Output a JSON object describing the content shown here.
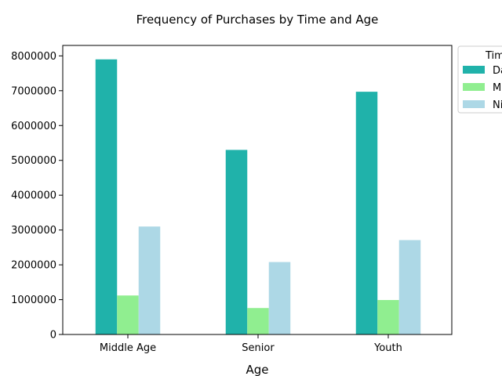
{
  "chart_data": {
    "type": "bar",
    "title": "Frequency of Purchases by Time and Age",
    "xlabel": "Age",
    "ylabel": "",
    "categories": [
      "Middle Age",
      "Senior",
      "Youth"
    ],
    "series": [
      {
        "name": "Da",
        "values": [
          7900000,
          5300000,
          6970000
        ],
        "color": "#20b2aa"
      },
      {
        "name": "M",
        "values": [
          1120000,
          760000,
          990000
        ],
        "color": "#90ee90"
      },
      {
        "name": "Ni",
        "values": [
          3100000,
          2080000,
          2710000
        ],
        "color": "#add8e6"
      }
    ],
    "ylim": [
      0,
      8300000
    ],
    "yticks": [
      0,
      1000000,
      2000000,
      3000000,
      4000000,
      5000000,
      6000000,
      7000000,
      8000000
    ],
    "ytick_labels": [
      "0",
      "1000000",
      "2000000",
      "3000000",
      "4000000",
      "5000000",
      "6000000",
      "7000000",
      "8000000"
    ],
    "legend": {
      "title": "Tim",
      "placement": "outside-top-right"
    },
    "grid": false
  }
}
